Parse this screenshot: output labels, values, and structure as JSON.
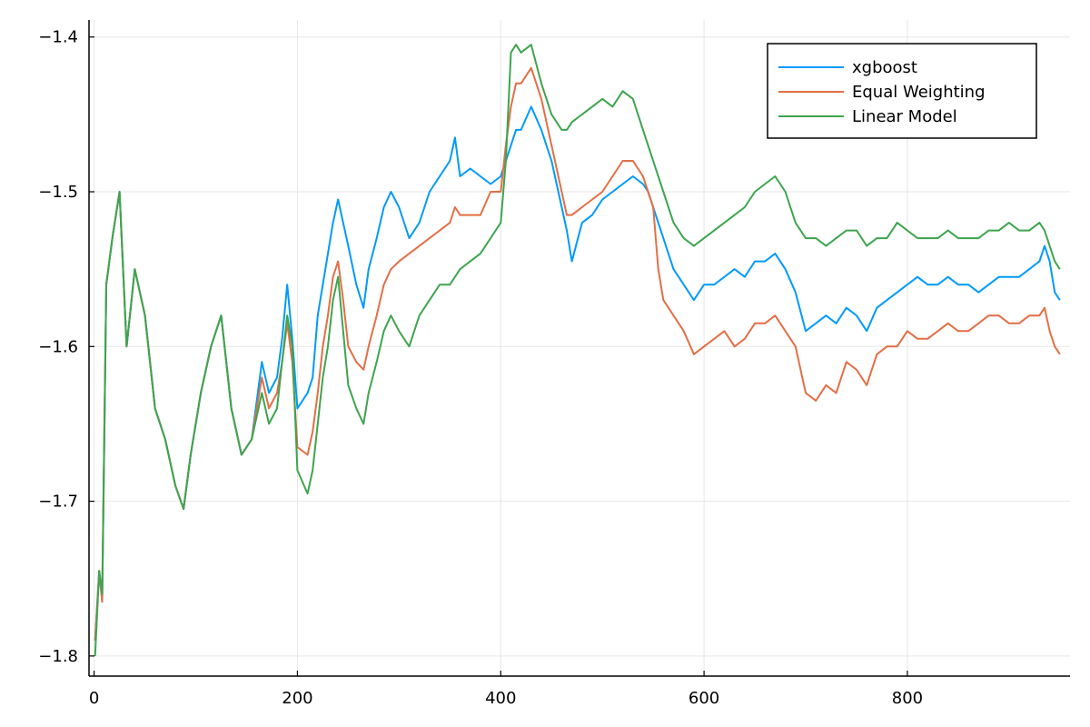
{
  "chart_data": {
    "type": "line",
    "title": "",
    "xlabel": "",
    "ylabel": "",
    "xlim": [
      -5,
      960
    ],
    "ylim": [
      -1.813,
      -1.389
    ],
    "xticks": [
      0,
      200,
      400,
      600,
      800
    ],
    "yticks": [
      -1.8,
      -1.7,
      -1.6,
      -1.5,
      -1.4
    ],
    "xtick_labels": [
      "0",
      "200",
      "400",
      "600",
      "800"
    ],
    "ytick_labels": [
      "−1.8",
      "−1.7",
      "−1.6",
      "−1.5",
      "−1.4"
    ],
    "grid": true,
    "legend_position": "top-right",
    "series": [
      {
        "name": "xgboost",
        "color": "#009AFA",
        "x": [
          1,
          5,
          8,
          12,
          18,
          25,
          32,
          40,
          50,
          60,
          70,
          80,
          88,
          95,
          105,
          115,
          125,
          135,
          145,
          155,
          165,
          172,
          180,
          185,
          190,
          195,
          200,
          210,
          215,
          220,
          225,
          230,
          235,
          240,
          245,
          250,
          258,
          265,
          270,
          278,
          285,
          292,
          300,
          310,
          320,
          330,
          340,
          350,
          355,
          360,
          370,
          380,
          390,
          400,
          405,
          410,
          415,
          420,
          430,
          440,
          450,
          460,
          465,
          470,
          480,
          490,
          500,
          510,
          520,
          530,
          540,
          545,
          550,
          555,
          560,
          570,
          580,
          590,
          600,
          610,
          620,
          630,
          640,
          650,
          660,
          670,
          680,
          690,
          700,
          710,
          720,
          730,
          740,
          750,
          760,
          770,
          780,
          790,
          800,
          810,
          820,
          830,
          840,
          850,
          860,
          870,
          880,
          890,
          900,
          910,
          920,
          930,
          935,
          940,
          945,
          950
        ],
        "values": [
          -1.79,
          -1.745,
          -1.765,
          -1.56,
          -1.53,
          -1.5,
          -1.6,
          -1.55,
          -1.58,
          -1.64,
          -1.66,
          -1.69,
          -1.705,
          -1.67,
          -1.63,
          -1.6,
          -1.58,
          -1.64,
          -1.67,
          -1.66,
          -1.61,
          -1.63,
          -1.62,
          -1.595,
          -1.56,
          -1.595,
          -1.64,
          -1.63,
          -1.62,
          -1.58,
          -1.56,
          -1.54,
          -1.52,
          -1.505,
          -1.52,
          -1.535,
          -1.56,
          -1.575,
          -1.55,
          -1.53,
          -1.51,
          -1.5,
          -1.51,
          -1.53,
          -1.52,
          -1.5,
          -1.49,
          -1.48,
          -1.465,
          -1.49,
          -1.485,
          -1.49,
          -1.495,
          -1.49,
          -1.48,
          -1.47,
          -1.46,
          -1.46,
          -1.445,
          -1.46,
          -1.48,
          -1.51,
          -1.525,
          -1.545,
          -1.52,
          -1.515,
          -1.505,
          -1.5,
          -1.495,
          -1.49,
          -1.495,
          -1.5,
          -1.51,
          -1.52,
          -1.53,
          -1.55,
          -1.56,
          -1.57,
          -1.56,
          -1.56,
          -1.555,
          -1.55,
          -1.555,
          -1.545,
          -1.545,
          -1.54,
          -1.55,
          -1.565,
          -1.59,
          -1.585,
          -1.58,
          -1.585,
          -1.575,
          -1.58,
          -1.59,
          -1.575,
          -1.57,
          -1.565,
          -1.56,
          -1.555,
          -1.56,
          -1.56,
          -1.555,
          -1.56,
          -1.56,
          -1.565,
          -1.56,
          -1.555,
          -1.555,
          -1.555,
          -1.55,
          -1.545,
          -1.535,
          -1.545,
          -1.565,
          -1.57
        ]
      },
      {
        "name": "Equal Weighting",
        "color": "#E26F46",
        "x": [
          1,
          5,
          8,
          12,
          18,
          25,
          32,
          40,
          50,
          60,
          70,
          80,
          88,
          95,
          105,
          115,
          125,
          135,
          145,
          155,
          165,
          172,
          180,
          185,
          190,
          195,
          200,
          210,
          215,
          220,
          225,
          230,
          235,
          240,
          245,
          250,
          258,
          265,
          270,
          278,
          285,
          292,
          300,
          310,
          320,
          330,
          340,
          350,
          355,
          360,
          370,
          380,
          390,
          400,
          405,
          410,
          415,
          420,
          430,
          440,
          450,
          460,
          465,
          470,
          480,
          490,
          500,
          510,
          520,
          530,
          540,
          545,
          550,
          555,
          560,
          570,
          580,
          590,
          600,
          610,
          620,
          630,
          640,
          650,
          660,
          670,
          680,
          690,
          700,
          710,
          720,
          730,
          740,
          750,
          760,
          770,
          780,
          790,
          800,
          810,
          820,
          830,
          840,
          850,
          860,
          870,
          880,
          890,
          900,
          910,
          920,
          930,
          935,
          940,
          945,
          950
        ],
        "values": [
          -1.79,
          -1.745,
          -1.765,
          -1.56,
          -1.53,
          -1.5,
          -1.6,
          -1.55,
          -1.58,
          -1.64,
          -1.66,
          -1.69,
          -1.705,
          -1.67,
          -1.63,
          -1.6,
          -1.58,
          -1.64,
          -1.67,
          -1.66,
          -1.62,
          -1.64,
          -1.63,
          -1.61,
          -1.585,
          -1.61,
          -1.665,
          -1.67,
          -1.655,
          -1.63,
          -1.6,
          -1.58,
          -1.555,
          -1.545,
          -1.57,
          -1.6,
          -1.61,
          -1.615,
          -1.6,
          -1.58,
          -1.56,
          -1.55,
          -1.545,
          -1.54,
          -1.535,
          -1.53,
          -1.525,
          -1.52,
          -1.51,
          -1.515,
          -1.515,
          -1.515,
          -1.5,
          -1.5,
          -1.47,
          -1.445,
          -1.43,
          -1.43,
          -1.42,
          -1.44,
          -1.47,
          -1.5,
          -1.515,
          -1.515,
          -1.51,
          -1.505,
          -1.5,
          -1.49,
          -1.48,
          -1.48,
          -1.49,
          -1.5,
          -1.51,
          -1.55,
          -1.57,
          -1.58,
          -1.59,
          -1.605,
          -1.6,
          -1.595,
          -1.59,
          -1.6,
          -1.595,
          -1.585,
          -1.585,
          -1.58,
          -1.59,
          -1.6,
          -1.63,
          -1.635,
          -1.625,
          -1.63,
          -1.61,
          -1.615,
          -1.625,
          -1.605,
          -1.6,
          -1.6,
          -1.59,
          -1.595,
          -1.595,
          -1.59,
          -1.585,
          -1.59,
          -1.59,
          -1.585,
          -1.58,
          -1.58,
          -1.585,
          -1.585,
          -1.58,
          -1.58,
          -1.575,
          -1.59,
          -1.6,
          -1.605
        ]
      },
      {
        "name": "Linear Model",
        "color": "#3EA44E",
        "x": [
          1,
          5,
          8,
          12,
          18,
          25,
          32,
          40,
          50,
          60,
          70,
          80,
          88,
          95,
          105,
          115,
          125,
          135,
          145,
          155,
          165,
          172,
          180,
          185,
          190,
          195,
          200,
          210,
          215,
          220,
          225,
          230,
          235,
          240,
          245,
          250,
          258,
          265,
          270,
          278,
          285,
          292,
          300,
          310,
          320,
          330,
          340,
          350,
          355,
          360,
          370,
          380,
          390,
          400,
          405,
          410,
          415,
          420,
          430,
          440,
          450,
          460,
          465,
          470,
          480,
          490,
          500,
          510,
          520,
          530,
          540,
          545,
          550,
          555,
          560,
          570,
          580,
          590,
          600,
          610,
          620,
          630,
          640,
          650,
          660,
          670,
          680,
          690,
          700,
          710,
          720,
          730,
          740,
          750,
          760,
          770,
          780,
          790,
          800,
          810,
          820,
          830,
          840,
          850,
          860,
          870,
          880,
          890,
          900,
          910,
          920,
          930,
          935,
          940,
          945,
          950
        ],
        "values": [
          -1.8,
          -1.745,
          -1.76,
          -1.56,
          -1.53,
          -1.5,
          -1.6,
          -1.55,
          -1.58,
          -1.64,
          -1.66,
          -1.69,
          -1.705,
          -1.67,
          -1.63,
          -1.6,
          -1.58,
          -1.64,
          -1.67,
          -1.66,
          -1.63,
          -1.65,
          -1.64,
          -1.61,
          -1.58,
          -1.6,
          -1.68,
          -1.695,
          -1.68,
          -1.65,
          -1.62,
          -1.6,
          -1.57,
          -1.555,
          -1.59,
          -1.625,
          -1.64,
          -1.65,
          -1.63,
          -1.61,
          -1.59,
          -1.58,
          -1.59,
          -1.6,
          -1.58,
          -1.57,
          -1.56,
          -1.56,
          -1.555,
          -1.55,
          -1.545,
          -1.54,
          -1.53,
          -1.52,
          -1.48,
          -1.41,
          -1.405,
          -1.41,
          -1.405,
          -1.43,
          -1.45,
          -1.46,
          -1.46,
          -1.455,
          -1.45,
          -1.445,
          -1.44,
          -1.445,
          -1.435,
          -1.44,
          -1.46,
          -1.47,
          -1.48,
          -1.49,
          -1.5,
          -1.52,
          -1.53,
          -1.535,
          -1.53,
          -1.525,
          -1.52,
          -1.515,
          -1.51,
          -1.5,
          -1.495,
          -1.49,
          -1.5,
          -1.52,
          -1.53,
          -1.53,
          -1.535,
          -1.53,
          -1.525,
          -1.525,
          -1.535,
          -1.53,
          -1.53,
          -1.52,
          -1.525,
          -1.53,
          -1.53,
          -1.53,
          -1.525,
          -1.53,
          -1.53,
          -1.53,
          -1.525,
          -1.525,
          -1.52,
          -1.525,
          -1.525,
          -1.52,
          -1.525,
          -1.535,
          -1.545,
          -1.55
        ]
      }
    ]
  }
}
